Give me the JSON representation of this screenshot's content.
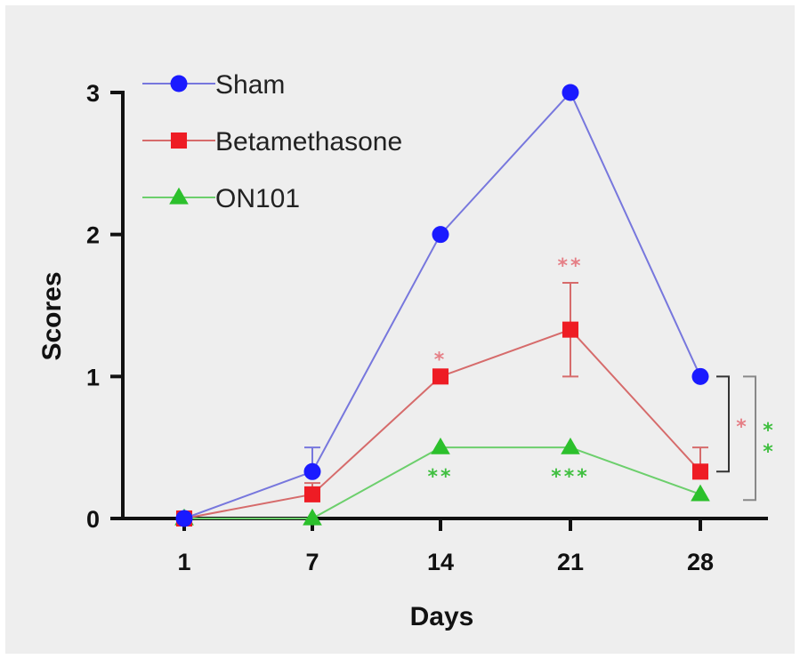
{
  "chart_data": {
    "type": "line",
    "title": "",
    "xlabel": "Days",
    "ylabel": "Scores",
    "x": [
      "1",
      "7",
      "14",
      "21",
      "28"
    ],
    "ylim": [
      0,
      3
    ],
    "yticks": [
      "0",
      "1",
      "2",
      "3"
    ],
    "grid": false,
    "legend": "top-left",
    "series": [
      {
        "name": "Sham",
        "color": "#1a1aff",
        "marker": "circle",
        "line_color": "#7777dd",
        "values": [
          0,
          0.33,
          2,
          3,
          1
        ],
        "error": [
          0,
          0.17,
          0,
          0,
          0
        ]
      },
      {
        "name": "Betamethasone",
        "color": "#ee1c24",
        "marker": "square",
        "line_color": "#d66b6b",
        "values": [
          0,
          0.17,
          1,
          1.33,
          0.33
        ],
        "error": [
          0,
          0.08,
          0,
          0.33,
          0.17
        ]
      },
      {
        "name": "ON101",
        "color": "#2cc02c",
        "marker": "triangle",
        "line_color": "#6ccf6c",
        "values": [
          0,
          0,
          0.5,
          0.5,
          0.17
        ],
        "error": [
          0,
          0,
          0,
          0,
          0
        ]
      }
    ],
    "annotations": [
      {
        "text": "*",
        "x_index": 2,
        "y": 1,
        "position": "above",
        "color": "#e57f86"
      },
      {
        "text": "**",
        "x_index": 3,
        "y": 1.66,
        "position": "above",
        "color": "#e57f86"
      },
      {
        "text": "**",
        "x_index": 2,
        "y": 0.5,
        "position": "below",
        "color": "#3fbf3f"
      },
      {
        "text": "***",
        "x_index": 3,
        "y": 0.5,
        "position": "below",
        "color": "#3fbf3f"
      }
    ],
    "brackets": [
      {
        "text": "*",
        "from_y": 1,
        "to_y": 0.33,
        "level": 1,
        "color": "#e57f86"
      },
      {
        "text": "**",
        "from_y": 1,
        "to_y": 0.13,
        "level": 2,
        "color": "#3fbf3f"
      }
    ]
  }
}
